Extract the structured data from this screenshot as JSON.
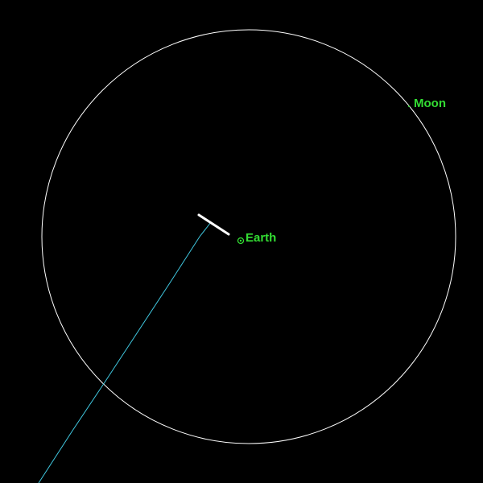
{
  "labels": {
    "earth": "Earth",
    "moon": "Moon"
  },
  "colors": {
    "background": "#000000",
    "label": "#33dd33",
    "moon_orbit": "#ffffff",
    "trajectory": "#40c8e0",
    "object_track": "#ffffff",
    "earth_marker": "#33dd33"
  }
}
